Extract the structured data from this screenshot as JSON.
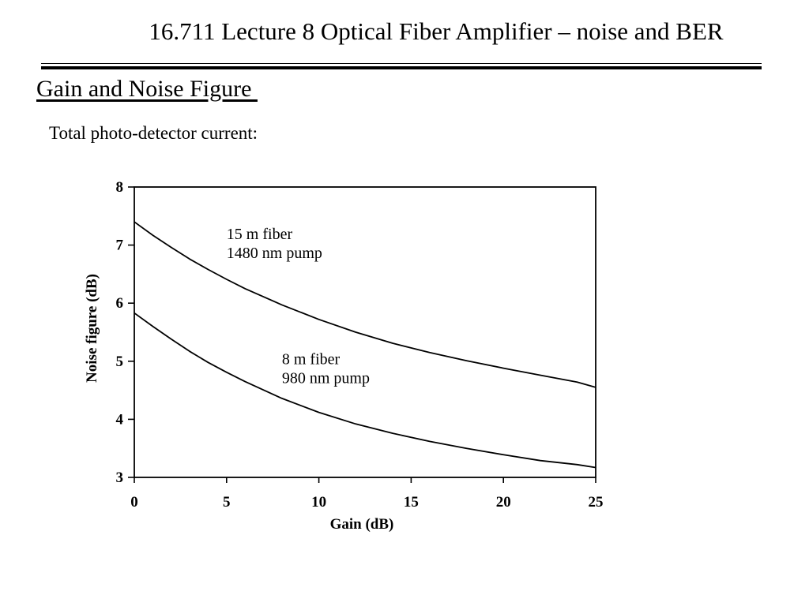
{
  "header": {
    "title": "16.711 Lecture 8 Optical Fiber Amplifier – noise and BER"
  },
  "section": {
    "heading": "Gain and Noise Figure ",
    "text": "Total photo-detector current:"
  },
  "chart_data": {
    "type": "line",
    "xlabel": "Gain (dB)",
    "ylabel": "Noise figure (dB)",
    "xlim": [
      0,
      25
    ],
    "ylim": [
      3,
      8
    ],
    "xticks": [
      0,
      5,
      10,
      15,
      20,
      25
    ],
    "yticks": [
      3,
      4,
      5,
      6,
      7,
      8
    ],
    "grid": false,
    "legend": "none",
    "series": [
      {
        "label_lines": [
          "15 m fiber",
          "1480 nm pump"
        ],
        "label_anchor": [
          5,
          7.1
        ],
        "x": [
          0,
          1,
          2,
          3,
          4,
          5,
          6,
          8,
          10,
          12,
          14,
          16,
          18,
          20,
          22,
          24,
          25
        ],
        "y": [
          7.4,
          7.17,
          6.96,
          6.76,
          6.58,
          6.41,
          6.25,
          5.97,
          5.72,
          5.5,
          5.31,
          5.15,
          5.01,
          4.88,
          4.76,
          4.64,
          4.55
        ]
      },
      {
        "label_lines": [
          "8 m fiber",
          "980 nm pump"
        ],
        "label_anchor": [
          8,
          4.95
        ],
        "x": [
          0,
          1,
          2,
          3,
          4,
          5,
          6,
          8,
          10,
          12,
          14,
          16,
          18,
          20,
          22,
          24,
          25
        ],
        "y": [
          5.83,
          5.6,
          5.38,
          5.17,
          4.98,
          4.81,
          4.65,
          4.36,
          4.12,
          3.92,
          3.76,
          3.62,
          3.5,
          3.39,
          3.29,
          3.22,
          3.17
        ]
      }
    ]
  }
}
